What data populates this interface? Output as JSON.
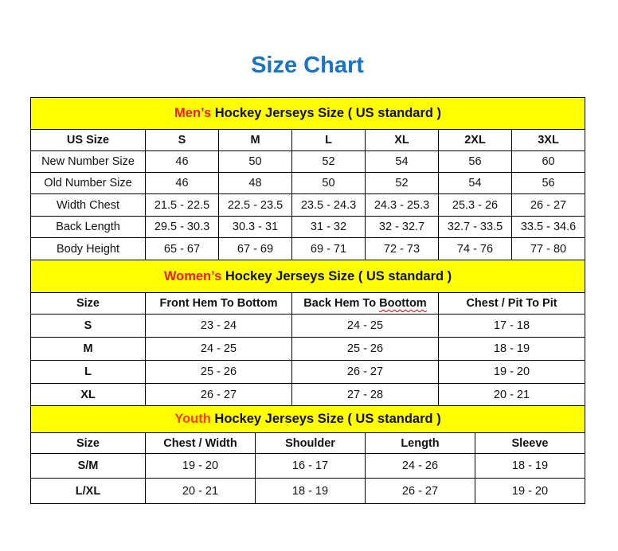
{
  "title": "Size Chart",
  "colors": {
    "title": "#1a73c4",
    "band": "#ffff00",
    "accent": "#ee1c1c"
  },
  "sections": [
    {
      "accent": "Men’s",
      "heading": "Hockey Jerseys Size ( US standard )",
      "columns": [
        "US Size",
        "S",
        "M",
        "L",
        "XL",
        "2XL",
        "3XL"
      ],
      "rows": [
        [
          "New Number Size",
          "46",
          "50",
          "52",
          "54",
          "56",
          "60"
        ],
        [
          "Old Number Size",
          "46",
          "48",
          "50",
          "52",
          "54",
          "56"
        ],
        [
          "Width Chest",
          "21.5 - 22.5",
          "22.5 - 23.5",
          "23.5 - 24.3",
          "24.3 - 25.3",
          "25.3 - 26",
          "26 - 27"
        ],
        [
          "Back Length",
          "29.5 - 30.3",
          "30.3 - 31",
          "31 - 32",
          "32 - 32.7",
          "32.7 - 33.5",
          "33.5 - 34.6"
        ],
        [
          "Body Height",
          "65 - 67",
          "67 - 69",
          "69 - 71",
          "72 - 73",
          "74 - 76",
          "77 - 80"
        ]
      ]
    },
    {
      "accent": "Women’s",
      "heading": "Hockey Jerseys Size ( US standard )",
      "columns": [
        "Size",
        "Front Hem To Bottom",
        "Back Hem To Boottom",
        "Chest / Pit To Pit"
      ],
      "rows": [
        [
          "S",
          "23 - 24",
          "24 - 25",
          "17 - 18"
        ],
        [
          "M",
          "24 - 25",
          "25 - 26",
          "18 - 19"
        ],
        [
          "L",
          "25 - 26",
          "26 - 27",
          "19 - 20"
        ],
        [
          "XL",
          "26 - 27",
          "27 - 28",
          "20 - 21"
        ]
      ]
    },
    {
      "accent": "Youth",
      "heading": "Hockey Jerseys Size ( US standard )",
      "columns": [
        "Size",
        "Chest / Width",
        "Shoulder",
        "Length",
        "Sleeve"
      ],
      "rows": [
        [
          "S/M",
          "19 - 20",
          "16 - 17",
          "24 - 26",
          "18 - 19"
        ],
        [
          "L/XL",
          "20 - 21",
          "18 - 19",
          "26 - 27",
          "19 - 20"
        ]
      ]
    }
  ]
}
